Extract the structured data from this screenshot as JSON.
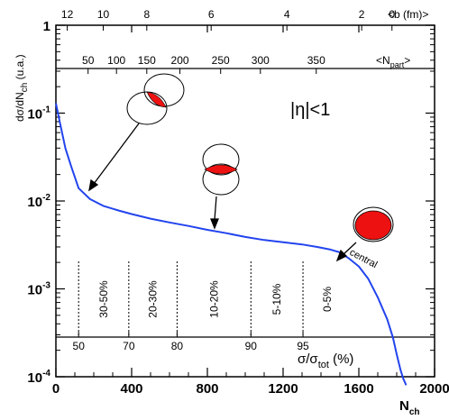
{
  "chart_data": {
    "type": "line",
    "ylabel": "dσ/dN",
    "ylabel_sub": "ch",
    "ylabel_unit": " (u.a.)",
    "xlabel": "N",
    "xlabel_sub": "ch",
    "xlim": [
      0,
      2000
    ],
    "ylim": [
      0.0001,
      1
    ],
    "log_y": true,
    "x_ticks": [
      "0",
      "400",
      "800",
      "1200",
      "1600",
      "2000"
    ],
    "x_tick_values": [
      0,
      400,
      800,
      1200,
      1600,
      2000
    ],
    "y_ticks": [
      {
        "base": "10",
        "exp": "-4",
        "value": 0.0001
      },
      {
        "base": "10",
        "exp": "-3",
        "value": 0.001
      },
      {
        "base": "10",
        "exp": "-2",
        "value": 0.01
      },
      {
        "base": "10",
        "exp": "-1",
        "value": 0.1
      },
      {
        "base": "1",
        "exp": "",
        "value": 1
      }
    ],
    "top_axis": {
      "label": "<b (fm)>",
      "ticks": [
        {
          "label": "12",
          "nch": 60
        },
        {
          "label": "10",
          "nch": 250
        },
        {
          "label": "8",
          "nch": 480
        },
        {
          "label": "6",
          "nch": 820
        },
        {
          "label": "4",
          "nch": 1220
        },
        {
          "label": "2",
          "nch": 1615
        },
        {
          "label": "0",
          "nch": 1775
        }
      ]
    },
    "npart_axis": {
      "label": "<N",
      "label_sub": "part",
      "label_end": ">",
      "ticks": [
        {
          "label": "50",
          "nch": 170
        },
        {
          "label": "100",
          "nch": 320
        },
        {
          "label": "150",
          "nch": 480
        },
        {
          "label": "200",
          "nch": 655
        },
        {
          "label": "250",
          "nch": 870
        },
        {
          "label": "300",
          "nch": 1080
        },
        {
          "label": "350",
          "nch": 1375
        }
      ]
    },
    "centrality_axis": {
      "label": "σ/σ",
      "label_sub": "tot",
      "label_end": " (%)",
      "ticks": [
        {
          "label": "50",
          "nch": 120
        },
        {
          "label": "70",
          "nch": 385
        },
        {
          "label": "80",
          "nch": 640
        },
        {
          "label": "90",
          "nch": 1030
        },
        {
          "label": "95",
          "nch": 1305
        }
      ]
    },
    "bins": [
      {
        "label": "30-50%",
        "x_lo": 120,
        "x_hi": 385
      },
      {
        "label": "20-30%",
        "x_lo": 385,
        "x_hi": 640
      },
      {
        "label": "10-20%",
        "x_lo": 640,
        "x_hi": 1030
      },
      {
        "label": "5-10%",
        "x_lo": 1030,
        "x_hi": 1305
      },
      {
        "label": "0-5%",
        "x_lo": 1305,
        "x_hi": 1560
      }
    ],
    "series": [
      {
        "color": "#2244ee",
        "x": [
          0,
          20,
          50,
          80,
          120,
          180,
          250,
          330,
          400,
          500,
          600,
          700,
          800,
          900,
          1000,
          1100,
          1200,
          1300,
          1380,
          1450,
          1500,
          1550,
          1600,
          1650,
          1700,
          1750,
          1780,
          1800,
          1820,
          1835,
          1850
        ],
        "y": [
          0.13,
          0.08,
          0.04,
          0.025,
          0.014,
          0.0105,
          0.0088,
          0.0078,
          0.0071,
          0.0063,
          0.0057,
          0.0052,
          0.0047,
          0.0043,
          0.0039,
          0.0036,
          0.0034,
          0.0032,
          0.003,
          0.0028,
          0.0026,
          0.0022,
          0.0018,
          0.0013,
          0.0008,
          0.00045,
          0.00028,
          0.00018,
          0.00012,
          9.5e-05,
          8e-05
        ]
      }
    ],
    "annotations": {
      "eta": "|η|<1",
      "central": "central"
    }
  }
}
